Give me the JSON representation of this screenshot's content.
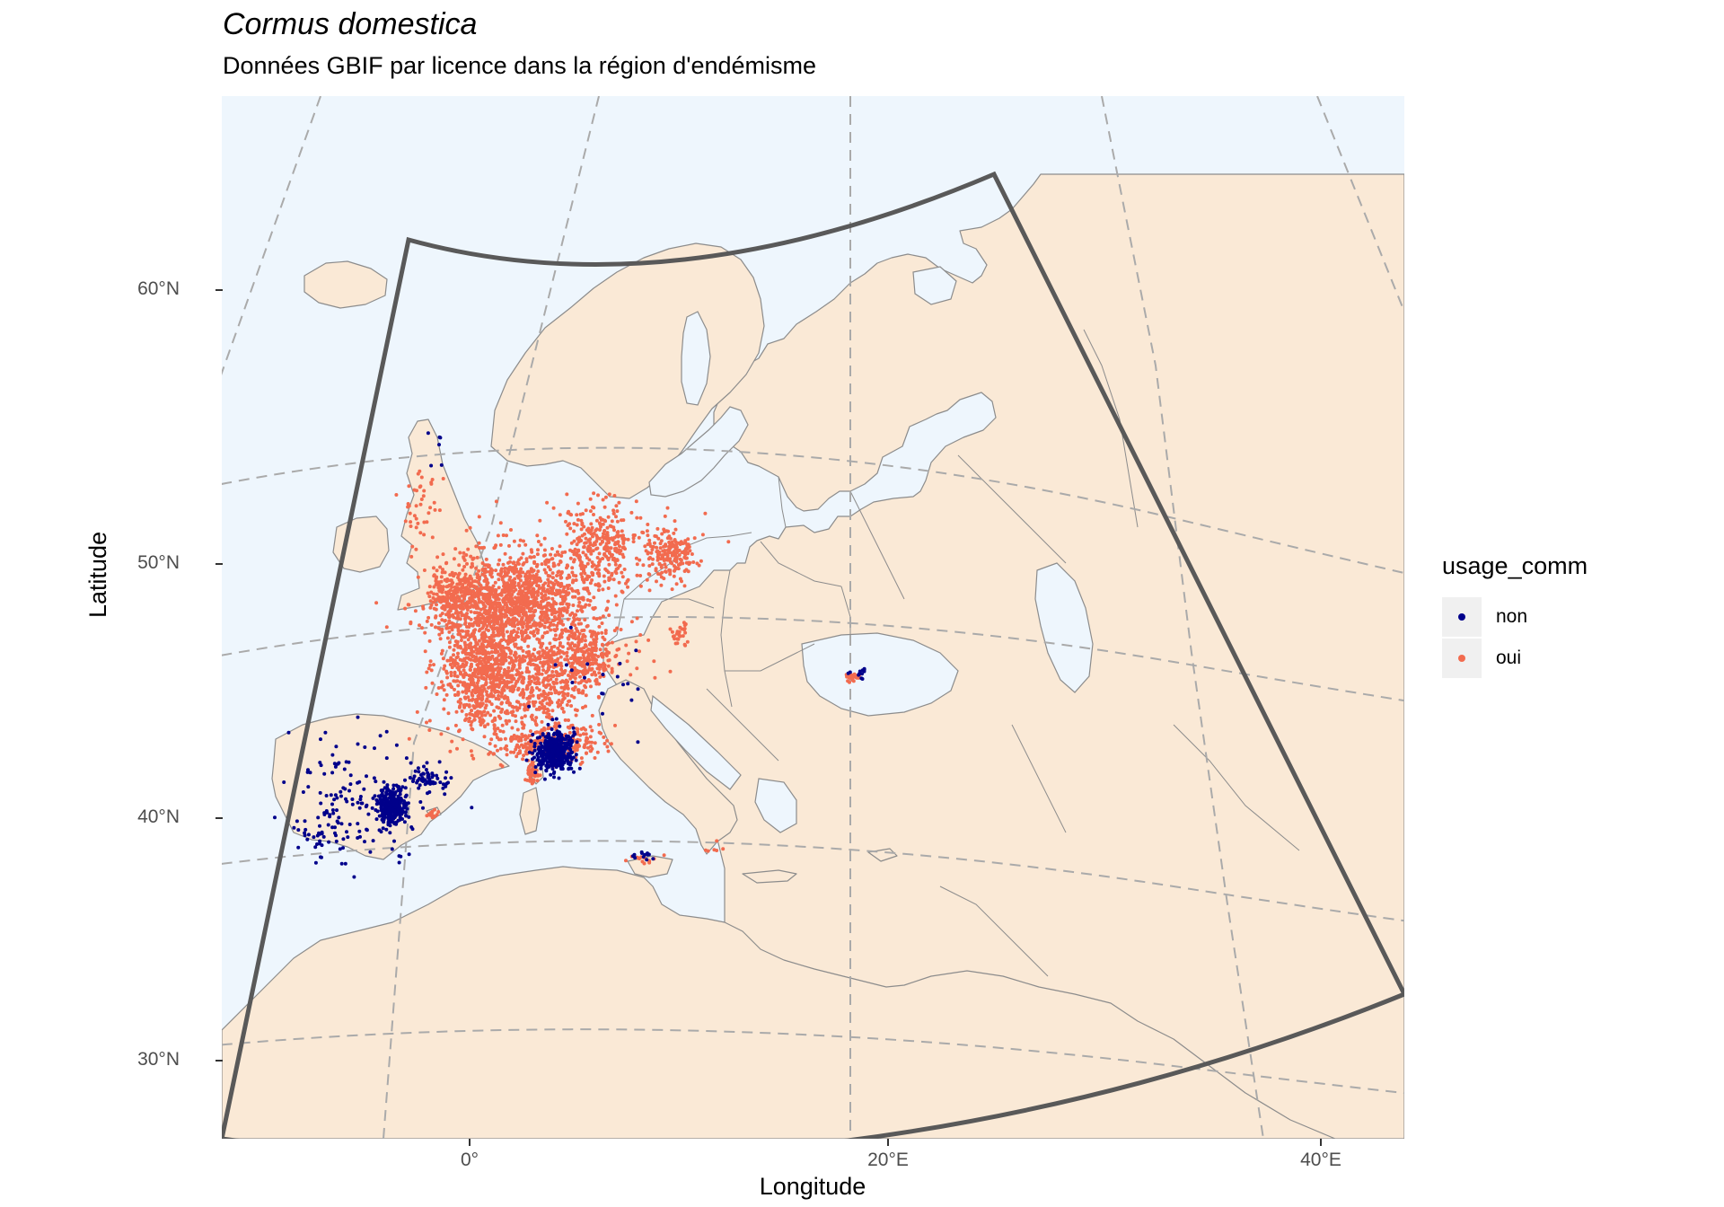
{
  "title": "Cormus domestica",
  "subtitle": "Données GBIF par licence dans la région d'endémisme",
  "axes": {
    "xlabel": "Longitude",
    "ylabel": "Latitude",
    "x_ticks": [
      "0°",
      "20°E",
      "40°E"
    ],
    "y_ticks": [
      "60°N",
      "50°N",
      "40°N",
      "30°N"
    ]
  },
  "legend": {
    "title": "usage_comm",
    "items": [
      {
        "label": "non",
        "color": "#00008b"
      },
      {
        "label": "oui",
        "color": "#f26b4f"
      }
    ]
  },
  "colors": {
    "ocean": "#eef6fd",
    "land": "#fae9d6",
    "border": "#8c8c8c",
    "graticule": "#aaaaaa",
    "region_outline": "#595959"
  },
  "map": {
    "projection": "conic (Lambert-like), north-up",
    "extent": {
      "lon": [
        -12,
        44
      ],
      "lat": [
        26,
        68
      ]
    },
    "endemism_region": "sector bounded by longitudes ~-20 to ~50 and latitudes ~29 to ~69",
    "points": [
      {
        "usage_comm": "oui",
        "area": "France",
        "density": "very high"
      },
      {
        "usage_comm": "oui",
        "area": "Germany / Switzerland",
        "density": "high"
      },
      {
        "usage_comm": "oui",
        "area": "Southern England",
        "density": "low"
      },
      {
        "usage_comm": "oui",
        "area": "Corsica",
        "density": "low"
      },
      {
        "usage_comm": "oui",
        "area": "Crimea / Black Sea coast",
        "density": "low"
      },
      {
        "usage_comm": "non",
        "area": "Eastern Spain (Valencia)",
        "density": "high"
      },
      {
        "usage_comm": "non",
        "area": "Tuscany, Italy",
        "density": "high"
      },
      {
        "usage_comm": "non",
        "area": "Southern Spain",
        "density": "medium"
      },
      {
        "usage_comm": "non",
        "area": "Sicily",
        "density": "low"
      },
      {
        "usage_comm": "non",
        "area": "Crimea",
        "density": "low"
      }
    ]
  }
}
